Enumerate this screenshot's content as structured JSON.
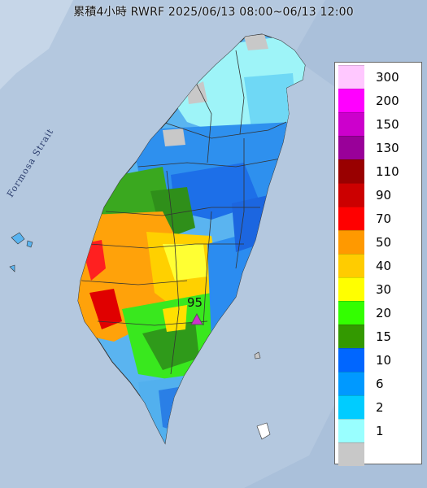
{
  "title": "累積4小時 RWRF 2025/06/13 08:00~06/13 12:00",
  "strait_label": "Formosa Strait",
  "peak": {
    "value": "95",
    "marker_color": "#cc33cc",
    "icon": "triangle-marker"
  },
  "legend": [
    {
      "label": "300",
      "color": "#ffc8ff"
    },
    {
      "label": "200",
      "color": "#ff00ff"
    },
    {
      "label": "150",
      "color": "#cc00cc"
    },
    {
      "label": "130",
      "color": "#990099"
    },
    {
      "label": "110",
      "color": "#990000"
    },
    {
      "label": "90",
      "color": "#cc0000"
    },
    {
      "label": "70",
      "color": "#ff0000"
    },
    {
      "label": "50",
      "color": "#ff9900"
    },
    {
      "label": "40",
      "color": "#ffcc00"
    },
    {
      "label": "30",
      "color": "#ffff00"
    },
    {
      "label": "20",
      "color": "#33ff00"
    },
    {
      "label": "15",
      "color": "#339900"
    },
    {
      "label": "10",
      "color": "#0066ff"
    },
    {
      "label": "6",
      "color": "#0099ff"
    },
    {
      "label": "2",
      "color": "#00ccff"
    },
    {
      "label": "1",
      "color": "#99ffff"
    },
    {
      "label": "",
      "color": "#c8c8c8"
    }
  ]
}
